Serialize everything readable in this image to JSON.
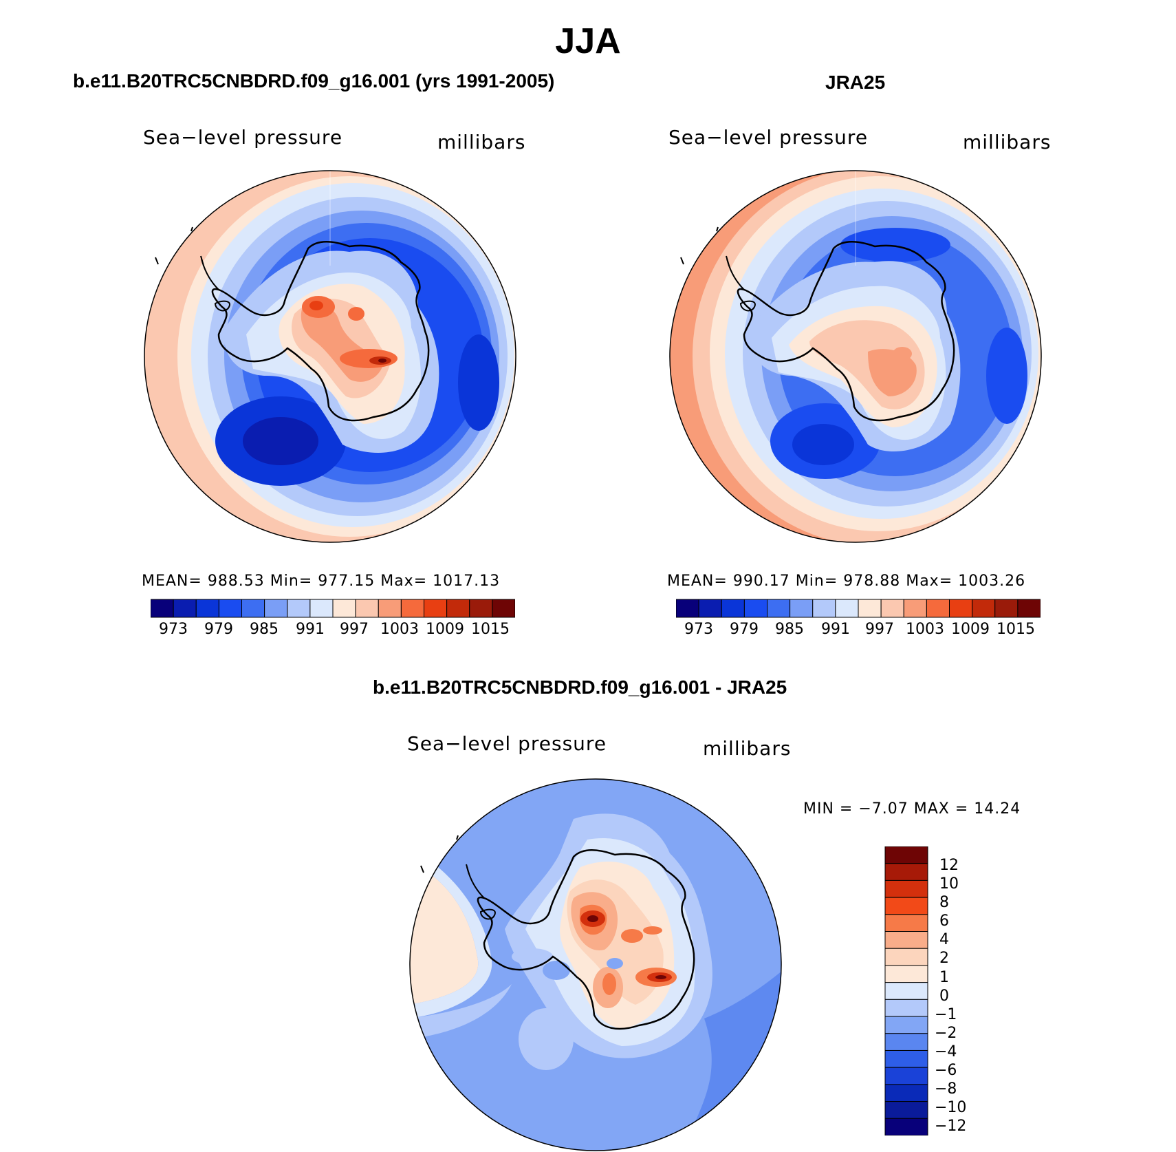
{
  "figure": {
    "title": "JJA"
  },
  "panels": [
    {
      "title": "b.e11.B20TRC5CNBDRD.f09_g16.001 (yrs 1991-2005)",
      "left_label": "Sea−level pressure",
      "right_label": "millibars",
      "stats": "MEAN= 988.53   Min= 977.15   Max= 1017.13"
    },
    {
      "title": "JRA25",
      "left_label": "Sea−level pressure",
      "right_label": "millibars",
      "stats": "MEAN= 990.17   Min= 978.88   Max= 1003.26"
    },
    {
      "title": "b.e11.B20TRC5CNBDRD.f09_g16.001 - JRA25",
      "left_label": "Sea−level pressure",
      "right_label": "millibars",
      "stats": "MIN =   −7.07 MAX =   14.24"
    }
  ],
  "colorbar_top": {
    "colors": [
      "#08007a",
      "#0a1db0",
      "#0a35d8",
      "#1a4cf0",
      "#3d6ef2",
      "#7a9ef6",
      "#b3c9fa",
      "#dbe8fc",
      "#fde8d8",
      "#fbc8b0",
      "#f89c78",
      "#f56a3c",
      "#e83f12",
      "#c22a0a",
      "#9a1b0a",
      "#6e0505"
    ],
    "ticks": [
      "973",
      "979",
      "985",
      "991",
      "997",
      "1003",
      "1009",
      "1015"
    ]
  },
  "colorbar_diff": {
    "colors": [
      "#6e0505",
      "#a71a08",
      "#d3300d",
      "#f24a18",
      "#f67a48",
      "#f9ad8a",
      "#fcd5bd",
      "#fde8d8",
      "#dbe8fc",
      "#b3c9fa",
      "#82a6f5",
      "#5a86f0",
      "#2e5ee8",
      "#1a42d8",
      "#0a2ab8",
      "#0a1b9a",
      "#08007a"
    ],
    "ticks": [
      "12",
      "10",
      "8",
      "6",
      "4",
      "2",
      "1",
      "0",
      "−1",
      "−2",
      "−4",
      "−6",
      "−8",
      "−10",
      "−12"
    ]
  }
}
